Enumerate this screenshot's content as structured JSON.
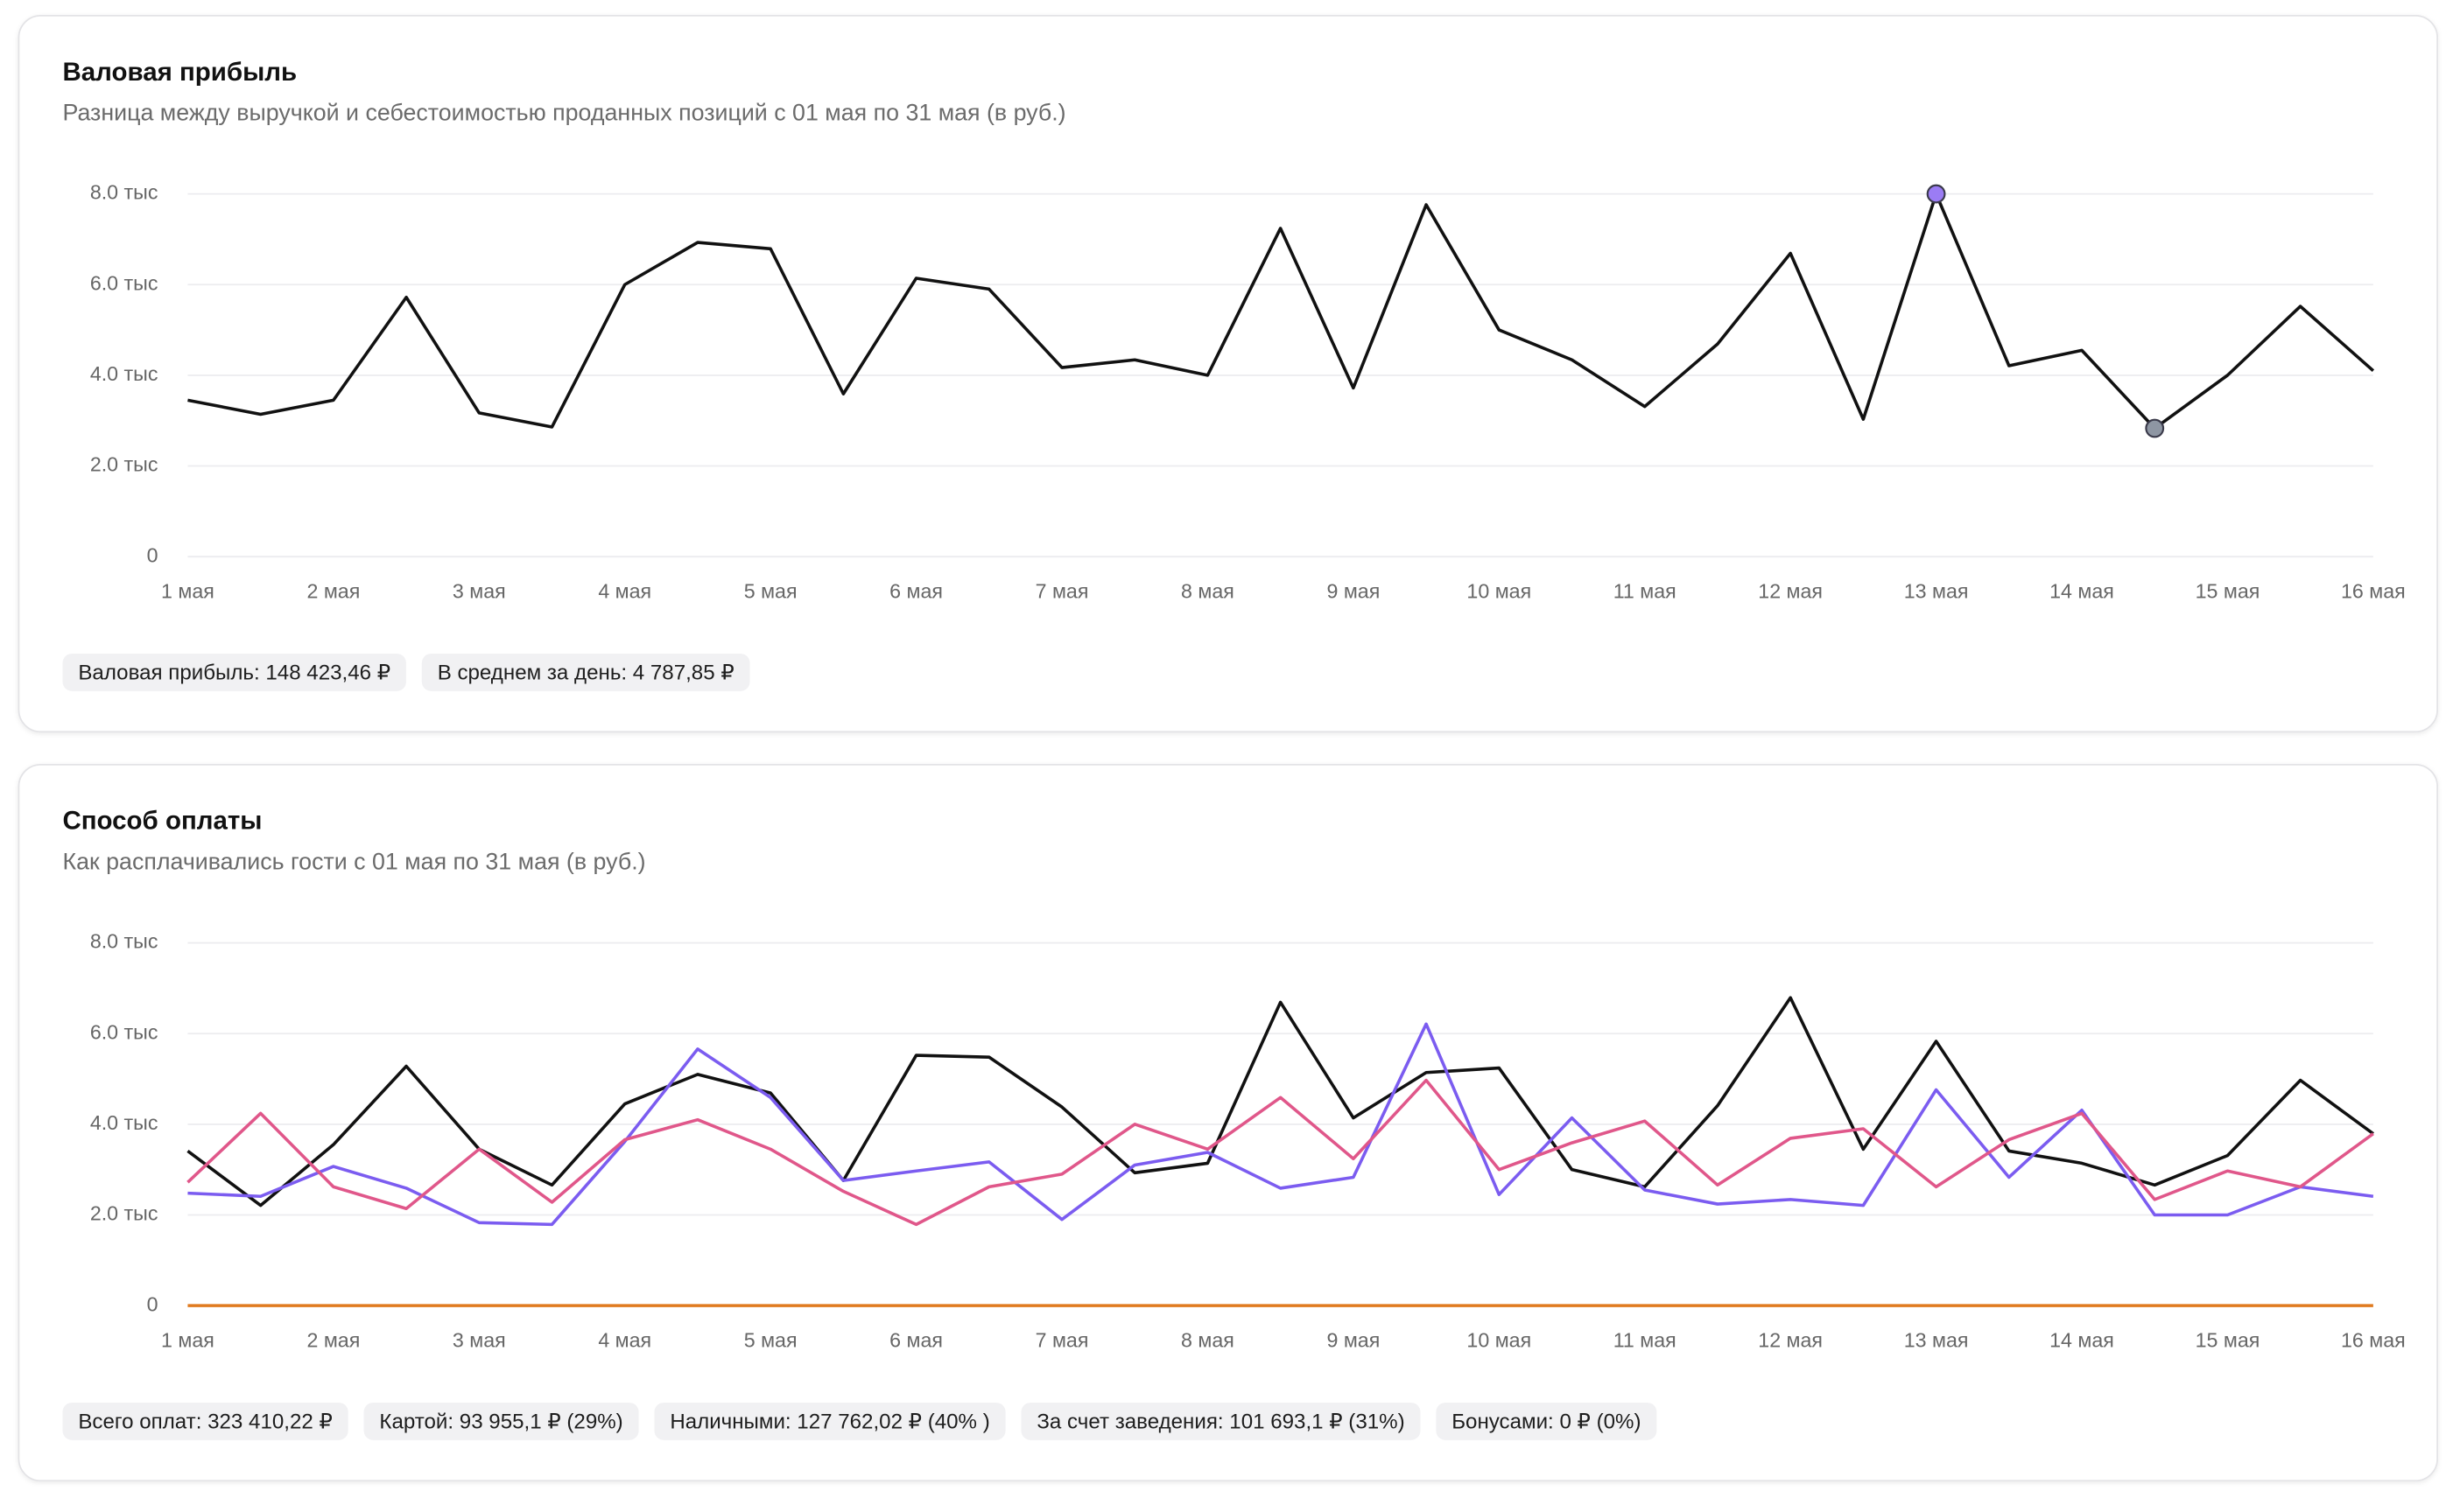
{
  "chart_data": [
    {
      "type": "line",
      "title": "Валовая прибыль",
      "subtitle": "Разница между выручкой и себестоимостью проданных позиций с 01 мая по 31 мая (в руб.)",
      "categories": [
        "1 мая",
        null,
        "2 мая",
        null,
        "3 мая",
        null,
        "4 мая",
        null,
        "5 мая",
        null,
        "6 мая",
        null,
        "7 мая",
        null,
        "8 мая",
        null,
        "9 мая",
        null,
        "10 мая",
        null,
        "11 мая",
        null,
        "12 мая",
        null,
        "13 мая",
        null,
        "14 мая",
        null,
        "15 мая",
        null,
        "16 мая"
      ],
      "series": [
        {
          "color": "#111111",
          "values": [
            3450,
            3140,
            3450,
            5720,
            3170,
            2860,
            6000,
            6930,
            6790,
            3590,
            6140,
            5900,
            4170,
            4340,
            4000,
            7240,
            3720,
            7760,
            5000,
            4340,
            3310,
            4690,
            6690,
            3030,
            8000,
            4210,
            4550,
            2830,
            4000,
            5520,
            4100
          ]
        }
      ],
      "ylim": [
        0,
        8000
      ],
      "yticks": [
        0,
        {
          "value": 2000,
          "label": "2.0 тыс"
        },
        {
          "value": 4000,
          "label": "4.0 тыс"
        },
        {
          "value": 6000,
          "label": "6.0 тыс"
        },
        {
          "value": 8000,
          "label": "8.0 тыс"
        }
      ],
      "grid": true,
      "max_color": "#9b7cf4",
      "min_color": "#8e96a3",
      "summary": [
        "Валовая прибыль: 148 423,46 ₽",
        "В среднем за день: 4 787,85 ₽"
      ]
    },
    {
      "type": "line",
      "title": "Способ оплаты",
      "subtitle": "Как расплачивались гости с 01 мая по 31 мая (в руб.)",
      "categories": [
        "1 мая",
        null,
        "2 мая",
        null,
        "3 мая",
        null,
        "4 мая",
        null,
        "5 мая",
        null,
        "6 мая",
        null,
        "7 мая",
        null,
        "8 мая",
        null,
        "9 мая",
        null,
        "10 мая",
        null,
        "11 мая",
        null,
        "12 мая",
        null,
        "13 мая",
        null,
        "14 мая",
        null,
        "15 мая",
        null,
        "16 мая"
      ],
      "series": [
        {
          "color": "#111111",
          "values": [
            3410,
            2210,
            3550,
            5280,
            3450,
            2660,
            4450,
            5100,
            4690,
            2760,
            5520,
            5480,
            4380,
            2930,
            3140,
            6690,
            4140,
            5140,
            5240,
            3000,
            2620,
            4410,
            6790,
            3450,
            5830,
            3410,
            3140,
            2660,
            3310,
            4970,
            3790
          ]
        },
        {
          "color": "#7b5cf0",
          "values": [
            2480,
            2410,
            3070,
            2590,
            1830,
            1790,
            3620,
            5660,
            4590,
            2760,
            2970,
            3170,
            1900,
            3100,
            3380,
            2590,
            2830,
            6210,
            2450,
            4140,
            2550,
            2240,
            2340,
            2210,
            4760,
            2830,
            4310,
            2000,
            2000,
            2620,
            2410
          ]
        },
        {
          "color": "#e0578a",
          "values": [
            2720,
            4240,
            2620,
            2140,
            3450,
            2280,
            3660,
            4100,
            3450,
            2520,
            1790,
            2620,
            2900,
            4000,
            3450,
            4590,
            3240,
            4970,
            3000,
            3590,
            4070,
            2660,
            3690,
            3900,
            2620,
            3660,
            4240,
            2340,
            2970,
            2620,
            3790
          ]
        },
        {
          "color": "#e07b20",
          "values": [
            0,
            0,
            0,
            0,
            0,
            0,
            0,
            0,
            0,
            0,
            0,
            0,
            0,
            0,
            0,
            0,
            0,
            0,
            0,
            0,
            0,
            0,
            0,
            0,
            0,
            0,
            0,
            0,
            0,
            0,
            0
          ]
        }
      ],
      "ylim": [
        0,
        8000
      ],
      "yticks": [
        0,
        {
          "value": 2000,
          "label": "2.0 тыс"
        },
        {
          "value": 4000,
          "label": "4.0 тыс"
        },
        {
          "value": 6000,
          "label": "6.0 тыс"
        },
        {
          "value": 8000,
          "label": "8.0 тыс"
        }
      ],
      "grid": true,
      "summary": [
        "Всего оплат: 323 410,22 ₽",
        "Картой: 93 955,1 ₽ (29%)",
        "Наличными: 127 762,02 ₽ (40% )",
        "За счет заведения: 101 693,1 ₽ (31%)",
        "Бонусами: 0 ₽ (0%)"
      ]
    }
  ]
}
